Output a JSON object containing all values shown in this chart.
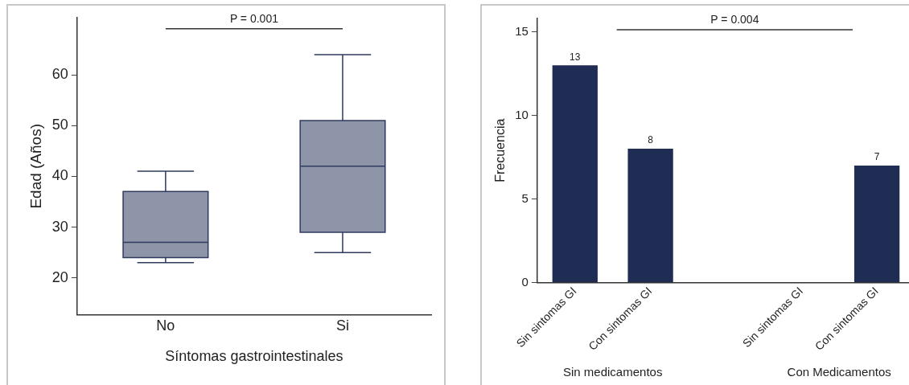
{
  "chart_data": [
    {
      "type": "box",
      "xlabel": "Síntomas gastrointestinales",
      "ylabel": "Edad (Años)",
      "categories": [
        "No",
        "Si"
      ],
      "color": "#8e95a8",
      "boxes": [
        {
          "low": 23,
          "q1": 24,
          "median": 27,
          "q3": 37,
          "high": 41
        },
        {
          "low": 25,
          "q1": 29,
          "median": 42,
          "q3": 51,
          "high": 64
        }
      ],
      "ylim": [
        12.7,
        71.3
      ],
      "yticks": [
        20,
        30,
        40,
        50,
        60
      ],
      "grid": false,
      "legend": false,
      "annotations": [
        "P = 0.001"
      ]
    },
    {
      "type": "bar",
      "ylabel": "Frecuencia",
      "categories": [
        "Sin sintomas GI",
        "Con sintomas GI",
        null,
        "Sin sintomas GI",
        "Con sintomas GI"
      ],
      "values": [
        13,
        8,
        null,
        0,
        7
      ],
      "color": "#1f2d54",
      "value_labels": [
        "13",
        "8",
        null,
        null,
        "7"
      ],
      "ylim": [
        0,
        15.8
      ],
      "yticks": [
        0,
        5,
        10,
        15
      ],
      "grid": false,
      "legend": false,
      "annotations": [
        "P = 0.004",
        "Sin medicamentos",
        "Con Medicamentos"
      ]
    }
  ]
}
